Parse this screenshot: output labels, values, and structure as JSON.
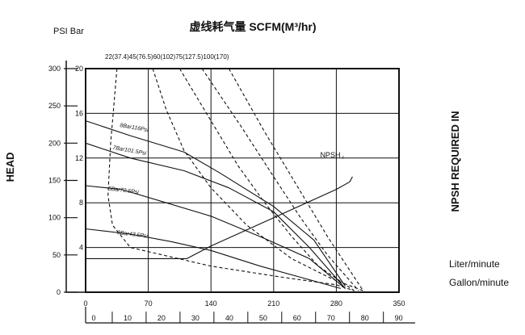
{
  "chart_data": {
    "type": "line",
    "title": "虚线耗气量  SCFM(M³/hr)",
    "units_label": "PSI Bar",
    "left_axis_title": "HEAD",
    "right_axis_title": "NPSH REQUIRED IN",
    "flow_units": [
      "Liter/minute",
      "Gallon/minute"
    ],
    "x_liter": {
      "min": 0,
      "max": 350,
      "ticks": [
        0,
        70,
        140,
        210,
        280,
        350
      ]
    },
    "x_gallon": {
      "min": 0,
      "max": 92.46,
      "ticks": [
        0,
        10,
        20,
        30,
        40,
        50,
        60,
        70,
        80,
        90
      ]
    },
    "y_psi": {
      "min": 0,
      "max": 300,
      "ticks": [
        0,
        50,
        100,
        150,
        200,
        250,
        300
      ]
    },
    "y_bar": {
      "min": 0,
      "max": 20,
      "ticks": [
        4,
        8,
        12,
        16,
        20
      ]
    },
    "air_consumption_labels": "22(37.4)45(76.5)60(102)75(127.5)100(170)",
    "series": [
      {
        "name": "8Bar116Psi",
        "style": "solid",
        "x": [
          0,
          50,
          110,
          150,
          210,
          255,
          290
        ],
        "y": [
          230,
          210,
          188,
          160,
          115,
          70,
          8
        ]
      },
      {
        "name": "7Bar101.5Psi",
        "style": "solid",
        "x": [
          0,
          50,
          110,
          160,
          210,
          250,
          290
        ],
        "y": [
          200,
          180,
          163,
          140,
          108,
          60,
          5
        ]
      },
      {
        "name": "5Bar72.5Psi",
        "style": "solid",
        "x": [
          0,
          40,
          90,
          140,
          200,
          250,
          290
        ],
        "y": [
          143,
          138,
          120,
          102,
          72,
          45,
          5
        ]
      },
      {
        "name": "3Bar43.5Psi",
        "style": "solid",
        "x": [
          0,
          50,
          95,
          140,
          195,
          240,
          285
        ],
        "y": [
          85,
          78,
          68,
          56,
          35,
          20,
          5
        ]
      },
      {
        "name": "NPSHr",
        "style": "solid",
        "x": [
          0,
          113,
          140,
          210,
          280,
          295,
          298
        ],
        "y": [
          45,
          45,
          62,
          100,
          138,
          148,
          155
        ]
      },
      {
        "name": "22(37.4)",
        "style": "dashed",
        "x": [
          35,
          28,
          25,
          30,
          50,
          140,
          220,
          280,
          300
        ],
        "y": [
          300,
          200,
          130,
          90,
          60,
          35,
          20,
          10,
          2
        ]
      },
      {
        "name": "45(76.5)",
        "style": "dashed",
        "x": [
          75,
          90,
          110,
          140,
          180,
          230,
          275,
          310
        ],
        "y": [
          300,
          245,
          190,
          140,
          90,
          45,
          18,
          2
        ]
      },
      {
        "name": "60(102)",
        "style": "dashed",
        "x": [
          105,
          140,
          170,
          200,
          230,
          260,
          300
        ],
        "y": [
          300,
          230,
          170,
          120,
          75,
          35,
          2
        ]
      },
      {
        "name": "75(127.5)",
        "style": "dashed",
        "x": [
          130,
          175,
          210,
          240,
          270,
          305
        ],
        "y": [
          300,
          220,
          155,
          100,
          50,
          2
        ]
      },
      {
        "name": "100(170)",
        "style": "dashed",
        "x": [
          160,
          200,
          235,
          270,
          310
        ],
        "y": [
          300,
          215,
          145,
          75,
          2
        ]
      }
    ]
  }
}
